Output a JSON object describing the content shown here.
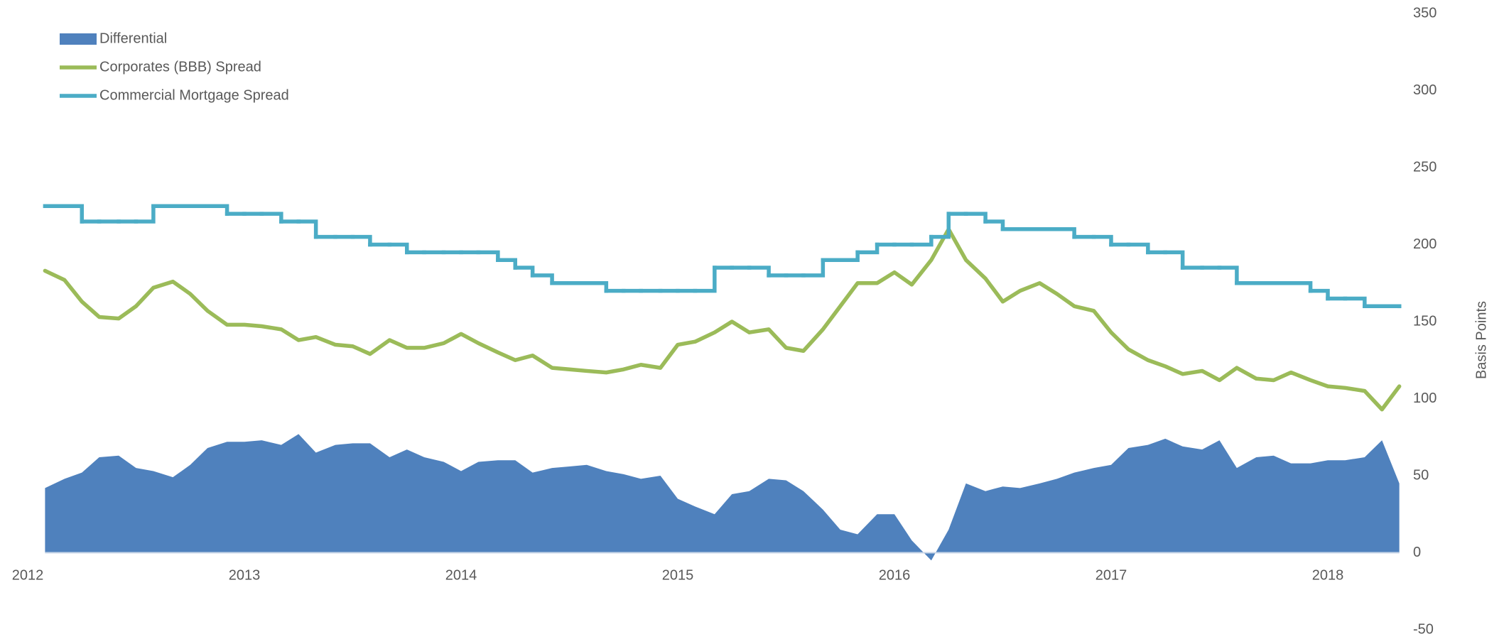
{
  "chart_data": {
    "type": "line",
    "y_label": "Basis Points",
    "x": [
      2012.08,
      2012.17,
      2012.25,
      2012.33,
      2012.42,
      2012.5,
      2012.58,
      2012.67,
      2012.75,
      2012.83,
      2012.92,
      2013.0,
      2013.08,
      2013.17,
      2013.25,
      2013.33,
      2013.42,
      2013.5,
      2013.58,
      2013.67,
      2013.75,
      2013.83,
      2013.92,
      2014.0,
      2014.08,
      2014.17,
      2014.25,
      2014.33,
      2014.42,
      2014.5,
      2014.58,
      2014.67,
      2014.75,
      2014.83,
      2014.92,
      2015.0,
      2015.08,
      2015.17,
      2015.25,
      2015.33,
      2015.42,
      2015.5,
      2015.58,
      2015.67,
      2015.75,
      2015.83,
      2015.92,
      2016.0,
      2016.08,
      2016.17,
      2016.25,
      2016.33,
      2016.42,
      2016.5,
      2016.58,
      2016.67,
      2016.75,
      2016.83,
      2016.92,
      2017.0,
      2017.08,
      2017.17,
      2017.25,
      2017.33,
      2017.42,
      2017.5,
      2017.58,
      2017.67,
      2017.75,
      2017.83,
      2017.92,
      2018.0,
      2018.08,
      2018.17,
      2018.25,
      2018.33
    ],
    "series": [
      {
        "name": "Differential",
        "type": "area",
        "color": "#4f81bd",
        "values": [
          42,
          48,
          52,
          62,
          63,
          55,
          53,
          49,
          57,
          68,
          72,
          72,
          73,
          70,
          77,
          65,
          70,
          71,
          71,
          62,
          67,
          62,
          59,
          53,
          59,
          60,
          60,
          52,
          55,
          56,
          57,
          53,
          51,
          48,
          50,
          35,
          30,
          25,
          38,
          40,
          48,
          47,
          40,
          28,
          15,
          12,
          25,
          25,
          8,
          -5,
          15,
          45,
          40,
          43,
          42,
          45,
          48,
          52,
          55,
          57,
          68,
          70,
          74,
          69,
          67,
          73,
          55,
          62,
          63,
          58,
          58,
          60,
          60,
          62,
          73,
          45
        ]
      },
      {
        "name": "Corporates (BBB) Spread",
        "type": "line",
        "color": "#9bbb59",
        "values": [
          183,
          177,
          163,
          153,
          152,
          160,
          172,
          176,
          168,
          157,
          148,
          148,
          147,
          145,
          138,
          140,
          135,
          134,
          129,
          138,
          133,
          133,
          136,
          142,
          136,
          130,
          125,
          128,
          120,
          119,
          118,
          117,
          119,
          122,
          120,
          135,
          137,
          143,
          150,
          143,
          145,
          133,
          131,
          145,
          160,
          175,
          175,
          182,
          174,
          190,
          210,
          190,
          178,
          163,
          170,
          175,
          168,
          160,
          157,
          143,
          132,
          125,
          121,
          116,
          118,
          112,
          120,
          113,
          112,
          117,
          112,
          108,
          107,
          105,
          93,
          108
        ]
      },
      {
        "name": "Commercial Mortgage Spread",
        "type": "step",
        "color": "#4bacc6",
        "values": [
          225,
          225,
          215,
          215,
          215,
          215,
          225,
          225,
          225,
          225,
          220,
          220,
          220,
          215,
          215,
          205,
          205,
          205,
          200,
          200,
          195,
          195,
          195,
          195,
          195,
          190,
          185,
          180,
          175,
          175,
          175,
          170,
          170,
          170,
          170,
          170,
          170,
          185,
          185,
          185,
          180,
          180,
          180,
          190,
          190,
          195,
          200,
          200,
          200,
          205,
          220,
          220,
          215,
          210,
          210,
          210,
          210,
          205,
          205,
          200,
          200,
          195,
          195,
          185,
          185,
          185,
          175,
          175,
          175,
          175,
          170,
          165,
          165,
          160,
          160,
          160
        ]
      }
    ],
    "xlim": [
      2012,
      2018.33
    ],
    "xticks": [
      2012,
      2013,
      2014,
      2015,
      2016,
      2017,
      2018
    ],
    "ylim": [
      -50,
      350
    ],
    "yticks": [
      -50,
      0,
      50,
      100,
      150,
      200,
      250,
      300,
      350
    ],
    "legend": "top-left"
  }
}
